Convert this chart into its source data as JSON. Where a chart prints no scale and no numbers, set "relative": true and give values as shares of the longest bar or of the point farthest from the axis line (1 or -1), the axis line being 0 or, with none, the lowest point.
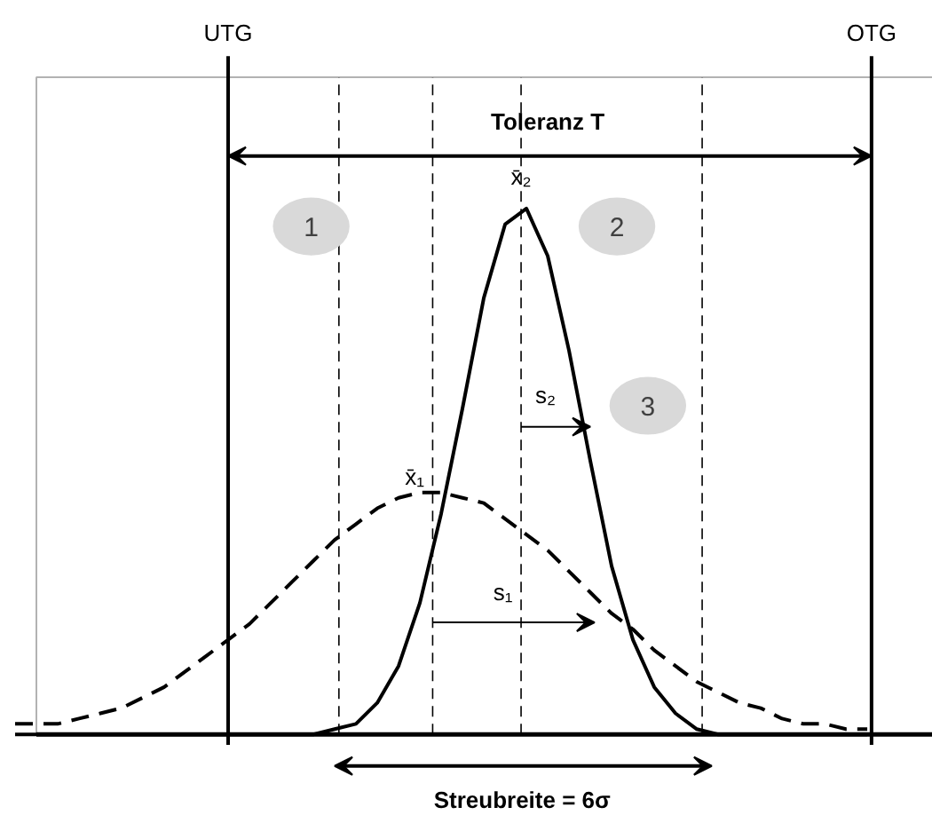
{
  "chart_data": {
    "type": "line",
    "relative": true,
    "grid": false,
    "categories": [
      null,
      null,
      null,
      null,
      null,
      null,
      null,
      null,
      null,
      null,
      null,
      null,
      null,
      null,
      null,
      null,
      null,
      null,
      null,
      null,
      null,
      null,
      null,
      null,
      null,
      null,
      null,
      null,
      null,
      null,
      null,
      null,
      null,
      null,
      null,
      null,
      null,
      null,
      null,
      null,
      null
    ],
    "series": [
      {
        "color": "#000000",
        "line_style": "dashed",
        "values": [
          0.02,
          0.02,
          0.02,
          0.03,
          0.04,
          0.05,
          0.07,
          0.09,
          0.12,
          0.15,
          0.18,
          0.21,
          0.25,
          0.29,
          0.33,
          0.37,
          0.4,
          0.43,
          0.45,
          0.46,
          0.46,
          0.45,
          0.44,
          0.41,
          0.38,
          0.35,
          0.31,
          0.27,
          0.23,
          0.2,
          0.16,
          0.13,
          0.1,
          0.08,
          0.06,
          0.05,
          0.03,
          0.02,
          0.02,
          0.01,
          0.01
        ]
      },
      {
        "color": "#000000",
        "line_style": "solid",
        "values": [
          0,
          0,
          0,
          0,
          0,
          0,
          0,
          0,
          0,
          0,
          0,
          0,
          0,
          0,
          0,
          0.01,
          0.02,
          0.06,
          0.13,
          0.25,
          0.42,
          0.62,
          0.83,
          0.97,
          1.0,
          0.91,
          0.73,
          0.52,
          0.32,
          0.18,
          0.09,
          0.04,
          0.01,
          0,
          0,
          0,
          0,
          0,
          0,
          0,
          0
        ]
      }
    ],
    "annotations": [
      "Toleranz T",
      "x̄₂",
      "x̄₁",
      "s₂",
      "s₁",
      "Streubreite = 6σ",
      "1",
      "2",
      "3",
      "UTG",
      "OTG"
    ]
  }
}
